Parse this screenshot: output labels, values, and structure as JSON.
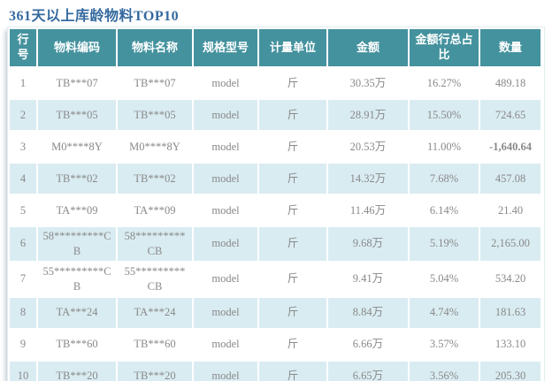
{
  "title": "361天以上库龄物料TOP10",
  "colors": {
    "header_bg": "#44929E",
    "row_alt_bg": "#D9ECF2",
    "title_color": "#34699F",
    "negative_value": "#E02222",
    "cell_text": "#898989"
  },
  "table": {
    "headers": [
      "行号",
      "物料编码",
      "物料名称",
      "规格型号",
      "计量单位",
      "金额",
      "金额行总占比",
      "数量"
    ],
    "rows": [
      [
        "1",
        "TB***07",
        "TB***07",
        "model",
        "斤",
        "30.35万",
        "16.27%",
        "489.18"
      ],
      [
        "2",
        "TB***05",
        "TB***05",
        "model",
        "斤",
        "28.91万",
        "15.50%",
        "724.65"
      ],
      [
        "3",
        "M0****8Y",
        "M0****8Y",
        "model",
        "斤",
        "20.53万",
        "11.00%",
        "-1,640.64"
      ],
      [
        "4",
        "TB***02",
        "TB***02",
        "model",
        "斤",
        "14.32万",
        "7.68%",
        "457.08"
      ],
      [
        "5",
        "TA***09",
        "TA***09",
        "model",
        "斤",
        "11.46万",
        "6.14%",
        "21.40"
      ],
      [
        "6",
        "58*********CB",
        "58*********CB",
        "model",
        "斤",
        "9.68万",
        "5.19%",
        "2,165.00"
      ],
      [
        "7",
        "55*********CB",
        "55*********CB",
        "model",
        "斤",
        "9.41万",
        "5.04%",
        "534.20"
      ],
      [
        "8",
        "TA***24",
        "TA***24",
        "model",
        "斤",
        "8.84万",
        "4.74%",
        "181.63"
      ],
      [
        "9",
        "TB***60",
        "TB***60",
        "model",
        "斤",
        "6.66万",
        "3.57%",
        "133.10"
      ],
      [
        "10",
        "TB***20",
        "TB***20",
        "model",
        "斤",
        "6.65万",
        "3.56%",
        "205.30"
      ]
    ]
  }
}
